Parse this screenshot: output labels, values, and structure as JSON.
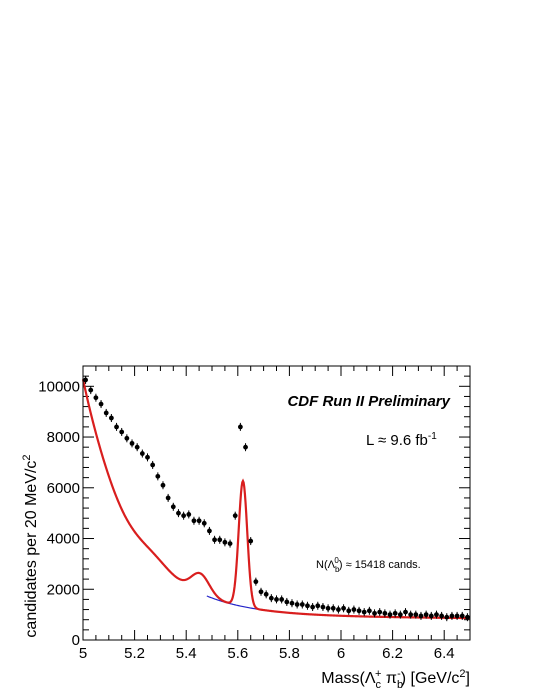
{
  "chart_data": {
    "type": "scatter",
    "title": "CDF Run II Preliminary",
    "luminosity_label": "L ≈ 9.6 fb",
    "luminosity_exponent": "-1",
    "yield_label_prefix": "N(Λ",
    "yield_label_sub": "b",
    "yield_label_sup": "0",
    "yield_label_suffix": ") ≈ 15418 cands.",
    "xlabel_main": "Mass(Λ",
    "xlabel_sub1": "c",
    "xlabel_sup1": "+",
    "xlabel_mid": " π",
    "xlabel_sub2": "b",
    "xlabel_sup2": "-",
    "xlabel_unit_pre": ") [GeV/c",
    "xlabel_unit_sup": "2",
    "xlabel_unit_post": "]",
    "ylabel_main": "candidates per 20 MeV/c",
    "ylabel_sup": "2",
    "xlim": [
      5.0,
      6.5
    ],
    "ylim": [
      0,
      10800
    ],
    "x_ticks": [
      "5",
      "5.2",
      "5.4",
      "5.6",
      "5.8",
      "6",
      "6.2",
      "6.4"
    ],
    "y_ticks": [
      "0",
      "2000",
      "4000",
      "6000",
      "8000",
      "10000"
    ],
    "colors": {
      "fit": "#d91e1e",
      "background": "#2323c8",
      "points": "#000000"
    },
    "points": {
      "x": [
        5.01,
        5.03,
        5.05,
        5.07,
        5.09,
        5.11,
        5.13,
        5.15,
        5.17,
        5.19,
        5.21,
        5.23,
        5.25,
        5.27,
        5.29,
        5.31,
        5.33,
        5.35,
        5.37,
        5.39,
        5.41,
        5.43,
        5.45,
        5.47,
        5.49,
        5.51,
        5.53,
        5.55,
        5.57,
        5.59,
        5.61,
        5.63,
        5.65,
        5.67,
        5.69,
        5.71,
        5.73,
        5.75,
        5.77,
        5.79,
        5.81,
        5.83,
        5.85,
        5.87,
        5.89,
        5.91,
        5.93,
        5.95,
        5.97,
        5.99,
        6.01,
        6.03,
        6.05,
        6.07,
        6.09,
        6.11,
        6.13,
        6.15,
        6.17,
        6.19,
        6.21,
        6.23,
        6.25,
        6.27,
        6.29,
        6.31,
        6.33,
        6.35,
        6.37,
        6.39,
        6.41,
        6.43,
        6.45,
        6.47,
        6.49
      ],
      "y": [
        10250,
        9850,
        9550,
        9300,
        8950,
        8750,
        8400,
        8200,
        7950,
        7750,
        7600,
        7350,
        7200,
        6900,
        6450,
        6100,
        5600,
        5250,
        5000,
        4900,
        4950,
        4700,
        4700,
        4600,
        4300,
        3950,
        3950,
        3850,
        3800,
        4900,
        8400,
        7600,
        3900,
        2300,
        1900,
        1800,
        1650,
        1600,
        1600,
        1500,
        1450,
        1400,
        1400,
        1350,
        1300,
        1350,
        1300,
        1250,
        1250,
        1200,
        1250,
        1150,
        1200,
        1150,
        1100,
        1150,
        1050,
        1100,
        1050,
        1000,
        1050,
        1000,
        1100,
        1000,
        1000,
        950,
        1000,
        950,
        1000,
        950,
        900,
        950,
        950,
        950,
        900
      ]
    }
  }
}
